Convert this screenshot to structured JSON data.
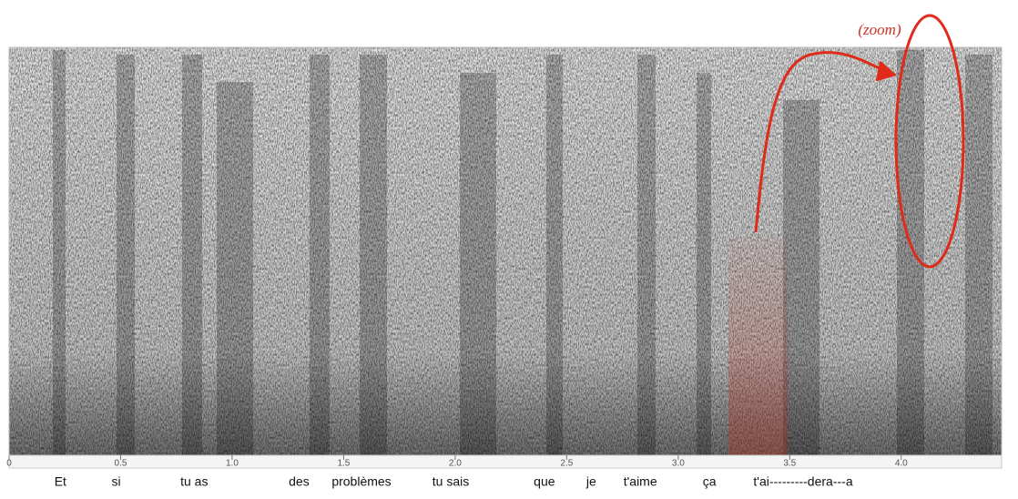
{
  "chart_data": {
    "type": "spectrogram",
    "xlim": [
      0,
      4.45
    ],
    "xticks": [
      0,
      0.5,
      {
        "value": 1,
        "label": "1.0"
      },
      1.5,
      {
        "value": 2,
        "label": "2.0"
      },
      2.5,
      {
        "value": 3,
        "label": "3.0"
      },
      3.5,
      {
        "value": 4,
        "label": "4.0"
      }
    ],
    "words": [
      {
        "text": "Et",
        "x": 0.23
      },
      {
        "text": "si",
        "x": 0.48
      },
      {
        "text": "tu as",
        "x": 0.83
      },
      {
        "text": "des",
        "x": 1.3
      },
      {
        "text": "problèmes",
        "x": 1.58
      },
      {
        "text": "tu sais",
        "x": 1.98
      },
      {
        "text": "que",
        "x": 2.4
      },
      {
        "text": "je",
        "x": 2.61
      },
      {
        "text": "t'aime",
        "x": 2.83
      },
      {
        "text": "ça",
        "x": 3.14
      },
      {
        "text": "t'ai---------dera---a",
        "x": 3.56
      }
    ],
    "annotation": "(zoom)"
  }
}
